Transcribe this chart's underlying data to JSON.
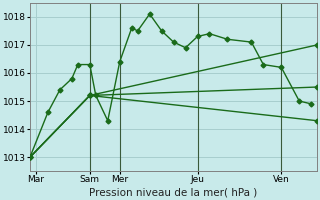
{
  "background_color": "#c8eaea",
  "grid_color": "#a8cece",
  "line_color": "#1a6b1a",
  "marker": "D",
  "markersize": 2.5,
  "linewidth": 1.0,
  "ylim": [
    1012.5,
    1018.5
  ],
  "yticks": [
    1013,
    1014,
    1015,
    1016,
    1017,
    1018
  ],
  "xlabel": "Pression niveau de la mer( hPa )",
  "xlabel_fontsize": 7.5,
  "tick_fontsize": 6.5,
  "xlim": [
    0,
    24
  ],
  "series": [
    {
      "x": [
        0,
        1.5,
        2.5,
        3.5,
        4.0,
        5.0,
        5.5,
        6.5,
        7.5,
        8.5,
        9.0,
        10.0,
        11.0,
        12.0,
        13.0,
        14.0,
        15.0,
        16.5,
        18.5,
        19.5,
        21.0,
        22.5,
        23.5
      ],
      "y": [
        1013.0,
        1014.6,
        1015.4,
        1015.8,
        1016.3,
        1016.3,
        1015.2,
        1014.3,
        1016.4,
        1017.6,
        1017.5,
        1018.1,
        1017.5,
        1017.1,
        1016.9,
        1017.3,
        1017.4,
        1017.2,
        1017.1,
        1016.3,
        1016.2,
        1015.0,
        1014.9
      ]
    },
    {
      "x": [
        0,
        5.0,
        24
      ],
      "y": [
        1013.0,
        1015.2,
        1017.0
      ]
    },
    {
      "x": [
        0,
        5.0,
        24
      ],
      "y": [
        1013.0,
        1015.2,
        1015.5
      ]
    },
    {
      "x": [
        0,
        5.0,
        24
      ],
      "y": [
        1013.0,
        1015.2,
        1014.3
      ]
    }
  ],
  "vlines": [
    {
      "x": 5.0,
      "color": "#3a5a3a",
      "linewidth": 0.8
    },
    {
      "x": 7.5,
      "color": "#3a5a3a",
      "linewidth": 0.8
    },
    {
      "x": 14.0,
      "color": "#3a5a3a",
      "linewidth": 0.8
    },
    {
      "x": 21.0,
      "color": "#3a5a3a",
      "linewidth": 0.8
    }
  ],
  "xtick_positions": [
    0.5,
    5.0,
    7.5,
    14.0,
    21.0
  ],
  "xtick_labels": [
    "Mar",
    "Sam",
    "Mer",
    "Jeu",
    "Ven"
  ]
}
